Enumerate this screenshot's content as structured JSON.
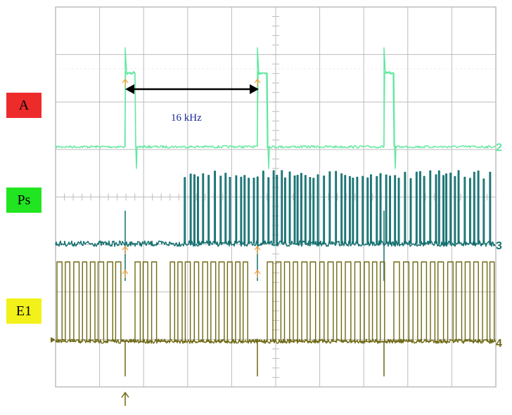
{
  "labels": [
    {
      "id": "A",
      "text": "A",
      "color": "#ee2b2b"
    },
    {
      "id": "Ps",
      "text": "Ps",
      "color": "#22e522"
    },
    {
      "id": "E1",
      "text": "E1",
      "color": "#f2f21a"
    }
  ],
  "annotation": {
    "text": "16 kHz"
  },
  "chart_data": {
    "type": "line",
    "grid": {
      "divisions_x": 10,
      "divisions_y": 8,
      "on": true
    },
    "series": [
      {
        "name": "2",
        "color": "#5fe89f"
      },
      {
        "name": "3",
        "color": "#136f6f"
      },
      {
        "name": "4",
        "color": "#6e6914"
      }
    ],
    "marker_color": "#f2a03a"
  }
}
